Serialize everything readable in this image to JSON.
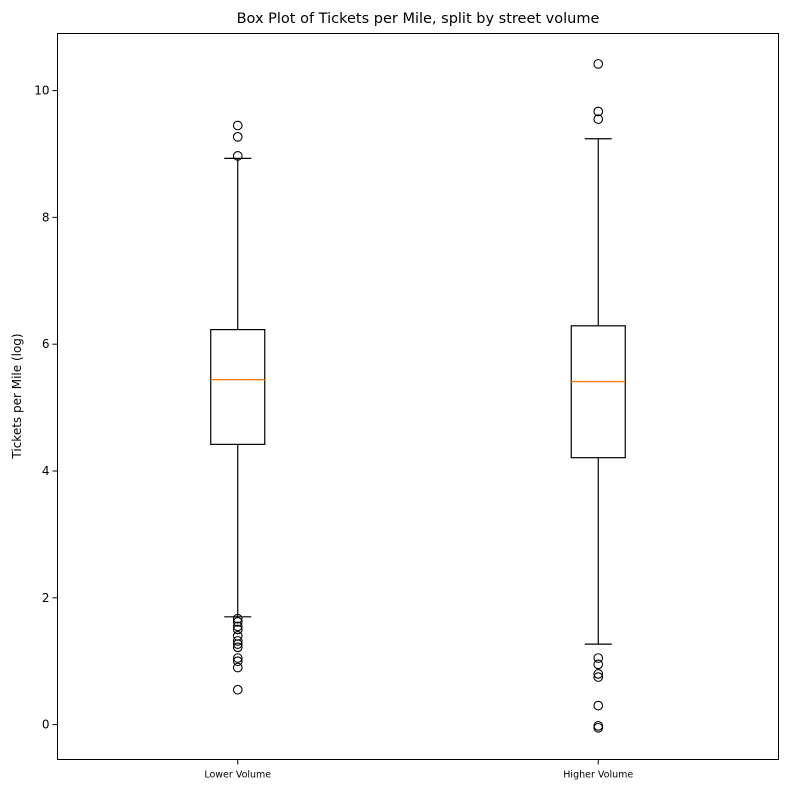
{
  "chart_data": {
    "type": "box",
    "title": "Box Plot of Tickets per Mile, split by street volume",
    "xlabel": "",
    "ylabel": "Tickets per Mile (log)",
    "ylim": [
      -0.55,
      10.9
    ],
    "yticks": [
      0,
      2,
      4,
      6,
      8,
      10
    ],
    "grid": false,
    "median_color": "#ff7f0e",
    "box_color": "#000000",
    "categories": [
      "Lower Volume",
      "Higher Volume"
    ],
    "boxes": [
      {
        "label": "Lower Volume",
        "whisker_low": 1.7,
        "q1": 4.42,
        "median": 5.44,
        "q3": 6.23,
        "whisker_high": 8.93,
        "fliers": [
          9.45,
          9.27,
          8.97,
          1.67,
          1.62,
          1.55,
          1.5,
          1.4,
          1.32,
          1.27,
          1.22,
          1.05,
          1.0,
          0.9,
          0.55
        ]
      },
      {
        "label": "Higher Volume",
        "whisker_low": 1.27,
        "q1": 4.21,
        "median": 5.41,
        "q3": 6.29,
        "whisker_high": 9.24,
        "fliers": [
          10.42,
          9.67,
          9.55,
          1.05,
          0.95,
          0.8,
          0.75,
          0.3,
          -0.02,
          -0.05
        ]
      }
    ]
  }
}
